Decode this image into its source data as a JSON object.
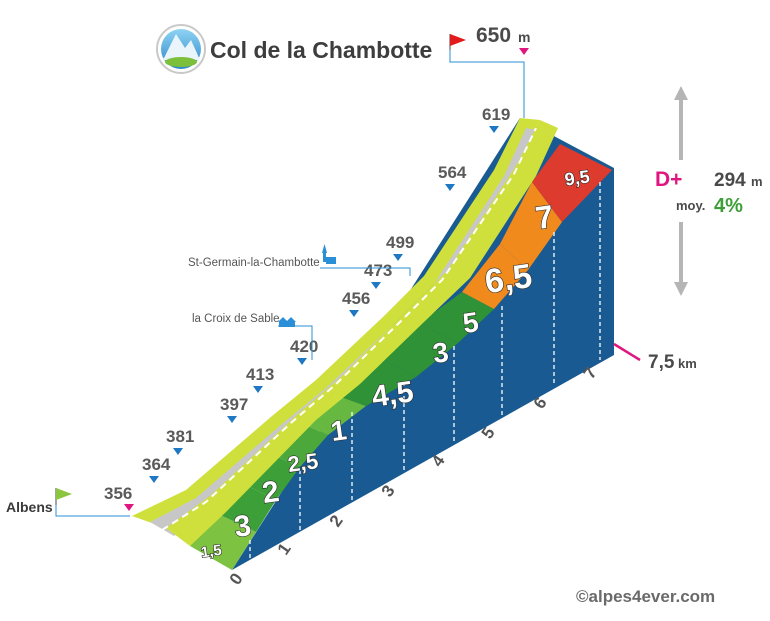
{
  "title": "Col de la Chambotte",
  "summit": {
    "altitude": "650",
    "unit": "m"
  },
  "start": {
    "name": "Albens",
    "altitude": "356"
  },
  "elevation_gain": {
    "label": "D+",
    "value": "294",
    "unit": "m"
  },
  "average": {
    "label": "moy.",
    "value": "4%"
  },
  "distance": {
    "value": "7,5",
    "unit": "km"
  },
  "altitude_marks": [
    "364",
    "381",
    "397",
    "413",
    "420",
    "456",
    "473",
    "499",
    "564",
    "619"
  ],
  "places": [
    {
      "name": "la Croix de Sable",
      "icon": "houses-icon"
    },
    {
      "name": "St-Germain-la-Chambotte",
      "icon": "church-icon"
    }
  ],
  "km_marks": [
    "0",
    "1",
    "2",
    "3",
    "4",
    "5",
    "6",
    "7"
  ],
  "segments": [
    {
      "label": "1,5",
      "color": "#7ec242"
    },
    {
      "label": "3",
      "color": "#3c9f37"
    },
    {
      "label": "2",
      "color": "#3c9f37"
    },
    {
      "label": "2,5",
      "color": "#4da83c"
    },
    {
      "label": "1",
      "color": "#66b840"
    },
    {
      "label": "4,5",
      "color": "#2f9237"
    },
    {
      "label": "3",
      "color": "#2f9237"
    },
    {
      "label": "5",
      "color": "#2f9237"
    },
    {
      "label": "6,5",
      "color": "#f08a1c"
    },
    {
      "label": "7",
      "color": "#f08a1c"
    },
    {
      "label": "9,5",
      "color": "#dd3b2e"
    }
  ],
  "colors": {
    "road_side": "#cfe03d",
    "road": "#c7c7c7",
    "wall": "#195a92",
    "accent": "#e0157f"
  },
  "copyright": "©alpes4ever.com"
}
